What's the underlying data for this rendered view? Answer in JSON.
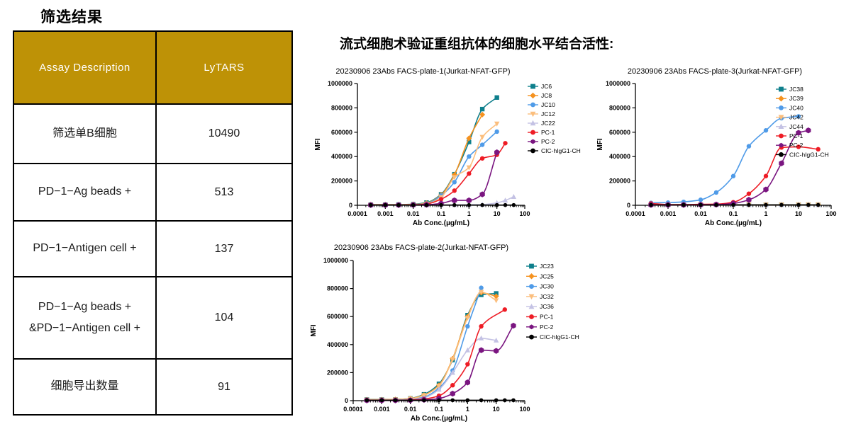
{
  "left_panel": {
    "title": "筛选结果",
    "table": {
      "header_bg": "#BE9206",
      "headers": [
        "Assay Description",
        "LyTARS"
      ],
      "rows": [
        {
          "label": "筛选单B细胞",
          "value": "10490"
        },
        {
          "label": "PD−1−Ag beads +",
          "value": "513"
        },
        {
          "label": "PD−1−Antigen cell +",
          "value": "137"
        },
        {
          "label": "PD−1−Ag beads +\n&PD−1−Antigen cell +",
          "value": "104"
        },
        {
          "label": "细胞导出数量",
          "value": "91"
        }
      ]
    }
  },
  "right_panel": {
    "title": "流式细胞术验证重组抗体的细胞水平结合活性:"
  },
  "palette": {
    "teal": "#0E7F8C",
    "orange": "#F5921F",
    "blue": "#4F9BE8",
    "peach": "#FBBE7D",
    "lavender": "#C4C2E4",
    "red": "#EE1C25",
    "purple": "#7A1580",
    "black": "#000000"
  },
  "chart_data": [
    {
      "type": "line",
      "title": "20230906 23Abs FACS-plate-1(Jurkat-NFAT-GFP)",
      "xlabel": "Ab Conc.(µg/mL)",
      "ylabel": "MFI",
      "xscale": "log",
      "xlim": [
        0.0001,
        100
      ],
      "ylim": [
        0,
        1000000
      ],
      "xticks": [
        0.0001,
        0.001,
        0.01,
        0.1,
        1,
        10,
        100
      ],
      "xtick_labels": [
        "0.0001",
        "0.001",
        "0.01",
        "0.1",
        "1",
        "10",
        "100"
      ],
      "yticks": [
        0,
        200000,
        400000,
        600000,
        800000,
        1000000
      ],
      "ytick_labels": [
        "0",
        "200000",
        "400000",
        "600000",
        "800000",
        "1000000"
      ],
      "grid": false,
      "legend_pos": "right-outside",
      "series": [
        {
          "name": "JC6",
          "color": "#0E7F8C",
          "marker": "square",
          "x": [
            0.0003,
            0.001,
            0.003,
            0.01,
            0.03,
            0.1,
            0.3,
            1,
            3,
            10
          ],
          "y": [
            5000,
            5000,
            6000,
            9000,
            22000,
            90000,
            255000,
            520000,
            790000,
            885000
          ]
        },
        {
          "name": "JC8",
          "color": "#F5921F",
          "marker": "diamond",
          "x": [
            0.0003,
            0.001,
            0.003,
            0.01,
            0.03,
            0.1,
            0.3,
            1,
            3
          ],
          "y": [
            5000,
            5000,
            5000,
            8000,
            18000,
            85000,
            250000,
            550000,
            745000
          ]
        },
        {
          "name": "JC10",
          "color": "#4F9BE8",
          "marker": "circle",
          "x": [
            0.0003,
            0.001,
            0.003,
            0.01,
            0.03,
            0.1,
            0.3,
            1,
            3,
            10
          ],
          "y": [
            3000,
            3000,
            4000,
            6000,
            14000,
            80000,
            190000,
            400000,
            497000,
            605000
          ]
        },
        {
          "name": "JC12",
          "color": "#FBBE7D",
          "marker": "triangle-down",
          "x": [
            0.0003,
            0.001,
            0.003,
            0.01,
            0.03,
            0.1,
            0.3,
            1,
            3,
            10
          ],
          "y": [
            3000,
            3000,
            3000,
            5000,
            12000,
            65000,
            230000,
            310000,
            560000,
            670000
          ]
        },
        {
          "name": "JC22",
          "color": "#C4C2E4",
          "marker": "triangle-up",
          "x": [
            0.0003,
            0.001,
            0.003,
            0.01,
            0.03,
            0.1,
            0.3,
            1,
            3,
            10,
            20,
            40
          ],
          "y": [
            2000,
            2000,
            2000,
            2000,
            2000,
            3000,
            3000,
            4000,
            6000,
            20000,
            40000,
            70000
          ]
        },
        {
          "name": "PC-1",
          "color": "#EE1C25",
          "marker": "circle",
          "x": [
            0.0003,
            0.001,
            0.003,
            0.01,
            0.03,
            0.1,
            0.3,
            1,
            3,
            10,
            20
          ],
          "y": [
            2000,
            2000,
            2000,
            4000,
            10000,
            50000,
            120000,
            260000,
            385000,
            415000,
            510000
          ]
        },
        {
          "name": "PC-2",
          "color": "#7A1580",
          "marker": "hexagon",
          "msize": 4.2,
          "x": [
            0.0003,
            0.001,
            0.003,
            0.01,
            0.03,
            0.1,
            0.3,
            1,
            3,
            10
          ],
          "y": [
            2000,
            2000,
            2000,
            3000,
            5000,
            15000,
            40000,
            40000,
            90000,
            435000
          ]
        },
        {
          "name": "CIC-hIgG1-CH",
          "color": "#000000",
          "marker": "circle",
          "msize": 2.8,
          "x": [
            0.0003,
            0.001,
            0.003,
            0.01,
            0.03,
            0.1,
            0.3,
            1,
            3,
            10,
            20,
            40
          ],
          "y": [
            2000,
            2000,
            2000,
            2000,
            2000,
            2000,
            2000,
            2000,
            2000,
            2000,
            2000,
            2000
          ]
        }
      ]
    },
    {
      "type": "line",
      "title": "20230906 23Abs FACS-plate-3(Jurkat-NFAT-GFP)",
      "xlabel": "Ab Conc.(µg/mL)",
      "ylabel": "MFI",
      "xscale": "log",
      "xlim": [
        0.0001,
        100
      ],
      "ylim": [
        0,
        1000000
      ],
      "xticks": [
        0.0001,
        0.001,
        0.01,
        0.1,
        1,
        10,
        100
      ],
      "xtick_labels": [
        "0.0001",
        "0.001",
        "0.01",
        "0.1",
        "1",
        "10",
        "100"
      ],
      "yticks": [
        0,
        200000,
        400000,
        600000,
        800000,
        1000000
      ],
      "ytick_labels": [
        "0",
        "200000",
        "400000",
        "600000",
        "800000",
        "1000000"
      ],
      "grid": false,
      "legend_pos": "inside-top-right",
      "series": [
        {
          "name": "JC38",
          "color": "#0E7F8C",
          "marker": "square",
          "x": [
            0.0003,
            0.001,
            0.003,
            0.01,
            0.03,
            0.1,
            0.3,
            1,
            3,
            10,
            20,
            40
          ],
          "y": [
            5000,
            5000,
            5000,
            5000,
            5000,
            5000,
            5000,
            5000,
            5000,
            5000,
            5000,
            5000
          ]
        },
        {
          "name": "JC39",
          "color": "#F5921F",
          "marker": "diamond",
          "x": [
            0.0003,
            0.001,
            0.003,
            0.01,
            0.03,
            0.1,
            0.3,
            1,
            3,
            10,
            20,
            40
          ],
          "y": [
            4000,
            4000,
            4000,
            4000,
            4000,
            4000,
            4000,
            4000,
            4000,
            4000,
            4000,
            4000
          ]
        },
        {
          "name": "JC40",
          "color": "#4F9BE8",
          "marker": "circle",
          "x": [
            0.0003,
            0.001,
            0.003,
            0.01,
            0.03,
            0.1,
            0.3,
            1,
            3,
            10
          ],
          "y": [
            20000,
            22000,
            28000,
            45000,
            105000,
            240000,
            485000,
            615000,
            715000,
            730000
          ]
        },
        {
          "name": "JC42",
          "color": "#FBBE7D",
          "marker": "triangle-down",
          "x": [
            0.0003,
            0.001,
            0.003,
            0.01,
            0.03,
            0.1,
            0.3,
            1,
            3,
            10,
            20,
            40
          ],
          "y": [
            5000,
            5000,
            5000,
            5000,
            5000,
            5000,
            5000,
            5000,
            5000,
            5000,
            5000,
            5000
          ]
        },
        {
          "name": "JC44",
          "color": "#C4C2E4",
          "marker": "triangle-up",
          "x": [
            0.0003,
            0.001,
            0.003,
            0.01,
            0.03,
            0.1,
            0.3,
            1,
            3,
            10,
            20,
            40
          ],
          "y": [
            4000,
            4000,
            4000,
            4000,
            4000,
            4000,
            4000,
            4000,
            4000,
            4000,
            4000,
            4000
          ]
        },
        {
          "name": "PC-1",
          "color": "#EE1C25",
          "marker": "circle",
          "x": [
            0.0003,
            0.001,
            0.003,
            0.01,
            0.03,
            0.1,
            0.3,
            1,
            3,
            10,
            40
          ],
          "y": [
            15000,
            6000,
            6000,
            8000,
            10000,
            25000,
            95000,
            240000,
            475000,
            480000,
            460000
          ]
        },
        {
          "name": "PC-2",
          "color": "#7A1580",
          "marker": "hexagon",
          "msize": 4.2,
          "x": [
            0.0003,
            0.001,
            0.003,
            0.01,
            0.03,
            0.1,
            0.3,
            1,
            3,
            10,
            20
          ],
          "y": [
            3000,
            3000,
            3000,
            4000,
            6000,
            15000,
            45000,
            130000,
            345000,
            595000,
            615000
          ]
        },
        {
          "name": "CIC-hIgG1-CH",
          "color": "#000000",
          "marker": "circle",
          "msize": 2.8,
          "x": [
            0.0003,
            0.001,
            0.003,
            0.01,
            0.03,
            0.1,
            0.3,
            1,
            3,
            10,
            20,
            40
          ],
          "y": [
            3000,
            3000,
            3000,
            3000,
            3000,
            3000,
            3000,
            3000,
            3000,
            3000,
            3000,
            3000
          ]
        }
      ]
    },
    {
      "type": "line",
      "title": "20230906 23Abs FACS-plate-2(Jurkat-NFAT-GFP)",
      "xlabel": "Ab Conc.(µg/mL)",
      "ylabel": "MFI",
      "xscale": "log",
      "xlim": [
        0.0001,
        100
      ],
      "ylim": [
        0,
        1000000
      ],
      "xticks": [
        0.0001,
        0.001,
        0.01,
        0.1,
        1,
        10,
        100
      ],
      "xtick_labels": [
        "0.0001",
        "0.001",
        "0.01",
        "0.1",
        "1",
        "10",
        "100"
      ],
      "yticks": [
        0,
        200000,
        400000,
        600000,
        800000,
        1000000
      ],
      "ytick_labels": [
        "0",
        "200000",
        "400000",
        "600000",
        "800000",
        "1000000"
      ],
      "grid": false,
      "legend_pos": "right-outside",
      "series": [
        {
          "name": "JC23",
          "color": "#0E7F8C",
          "marker": "square",
          "x": [
            0.0003,
            0.001,
            0.003,
            0.01,
            0.03,
            0.1,
            0.3,
            1,
            3,
            10
          ],
          "y": [
            8000,
            8000,
            9000,
            16000,
            45000,
            120000,
            290000,
            610000,
            755000,
            765000
          ]
        },
        {
          "name": "JC25",
          "color": "#F5921F",
          "marker": "diamond",
          "x": [
            0.0003,
            0.001,
            0.003,
            0.01,
            0.03,
            0.1,
            0.3,
            1,
            3,
            10
          ],
          "y": [
            7000,
            7000,
            9000,
            15000,
            40000,
            110000,
            300000,
            600000,
            770000,
            745000
          ]
        },
        {
          "name": "JC30",
          "color": "#4F9BE8",
          "marker": "circle",
          "x": [
            0.0003,
            0.001,
            0.003,
            0.01,
            0.03,
            0.1,
            0.3,
            1,
            3
          ],
          "y": [
            5000,
            5000,
            6000,
            10000,
            25000,
            90000,
            215000,
            530000,
            805000
          ]
        },
        {
          "name": "JC32",
          "color": "#FBBE7D",
          "marker": "triangle-down",
          "x": [
            0.0003,
            0.001,
            0.003,
            0.01,
            0.03,
            0.1,
            0.3,
            1,
            3,
            10
          ],
          "y": [
            6000,
            6000,
            8000,
            14000,
            38000,
            105000,
            295000,
            590000,
            775000,
            715000
          ]
        },
        {
          "name": "JC36",
          "color": "#C4C2E4",
          "marker": "triangle-up",
          "x": [
            0.0003,
            0.001,
            0.003,
            0.01,
            0.03,
            0.1,
            0.3,
            1,
            3,
            10
          ],
          "y": [
            4000,
            4000,
            5000,
            8000,
            20000,
            80000,
            200000,
            360000,
            445000,
            430000
          ]
        },
        {
          "name": "PC-1",
          "color": "#EE1C25",
          "marker": "circle",
          "x": [
            0.0003,
            0.001,
            0.003,
            0.01,
            0.03,
            0.1,
            0.3,
            1,
            3,
            20
          ],
          "y": [
            3000,
            3000,
            3000,
            5000,
            12000,
            35000,
            110000,
            260000,
            530000,
            650000
          ]
        },
        {
          "name": "PC-2",
          "color": "#7A1580",
          "marker": "hexagon",
          "msize": 4.2,
          "x": [
            0.0003,
            0.001,
            0.003,
            0.01,
            0.03,
            0.1,
            0.3,
            1,
            3,
            10,
            40
          ],
          "y": [
            2000,
            2000,
            2000,
            3000,
            6000,
            15000,
            50000,
            130000,
            360000,
            355000,
            535000
          ]
        },
        {
          "name": "CIC-hIgG1-CH",
          "color": "#000000",
          "marker": "circle",
          "msize": 2.8,
          "x": [
            0.0003,
            0.001,
            0.003,
            0.01,
            0.03,
            0.1,
            0.3,
            1,
            3,
            10,
            20,
            40
          ],
          "y": [
            3000,
            3000,
            3000,
            3000,
            3000,
            3000,
            3000,
            3000,
            3000,
            3000,
            3000,
            3000
          ]
        }
      ]
    }
  ]
}
